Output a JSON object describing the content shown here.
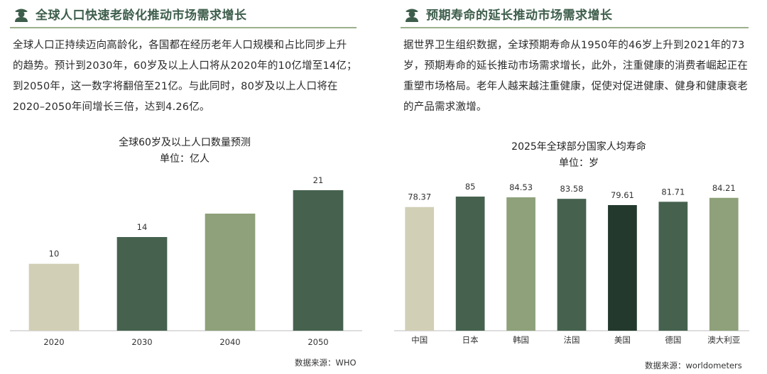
{
  "left": {
    "header": {
      "title": "全球人口快速老龄化推动市场需求增长",
      "icon": "person-hat-icon"
    },
    "paragraph": "全球人口正持续迈向高龄化，各国都在经历老年人口规模和占比同步上升的趋势。预计到2030年，60岁及以上人口将从2020年的10亿增至14亿；到2050年，这一数字将翻倍至21亿。与此同时，80岁及以上人口将在2020–2050年间增长三倍，达到4.26亿。",
    "source": "数据来源：WHO"
  },
  "right": {
    "header": {
      "title": "预期寿命的延长推动市场需求增长",
      "icon": "person-hat-icon"
    },
    "paragraph": "据世界卫生组织数据，全球预期寿命从1950年的46岁上升到2021年的73岁，预期寿命的延长推动市场需求增长，此外，注重健康的消费者崛起正在重塑市场格局。老年人越来越注重健康，促使对促进健康、健身和健康衰老的产品需求激增。",
    "source": "数据来源：worldometers"
  },
  "colors": {
    "header_text": "#3e5e4c",
    "rule": "#9bb08b",
    "beige": "#d1cfb5",
    "dark_green": "#46624f",
    "sage": "#8ea17a",
    "deep_green": "#23392d",
    "axis": "#bbbbbb"
  },
  "chart_data": [
    {
      "type": "bar",
      "title": "全球60岁及以上人口数量预测",
      "unit": "单位：亿人",
      "categories": [
        "2020",
        "2030",
        "2040",
        "2050"
      ],
      "values": [
        10,
        14,
        17.5,
        21
      ],
      "labels": [
        "10",
        "14",
        "",
        "21"
      ],
      "colors": [
        "#d1cfb5",
        "#46624f",
        "#8ea17a",
        "#46624f"
      ],
      "ylim": [
        0,
        21
      ],
      "grid": false
    },
    {
      "type": "bar",
      "title": "2025年全球部分国家人均寿命",
      "unit": "单位：岁",
      "categories": [
        "中国",
        "日本",
        "韩国",
        "法国",
        "美国",
        "德国",
        "澳大利亚"
      ],
      "values": [
        78.37,
        85,
        84.53,
        83.58,
        79.61,
        81.71,
        84.21
      ],
      "labels": [
        "78.37",
        "85",
        "84.53",
        "83.58",
        "79.61",
        "81.71",
        "84.21"
      ],
      "colors": [
        "#d1cfb5",
        "#46624f",
        "#8ea17a",
        "#46624f",
        "#23392d",
        "#46624f",
        "#8ea17a"
      ],
      "ylim": [
        0,
        85
      ],
      "grid": false
    }
  ]
}
